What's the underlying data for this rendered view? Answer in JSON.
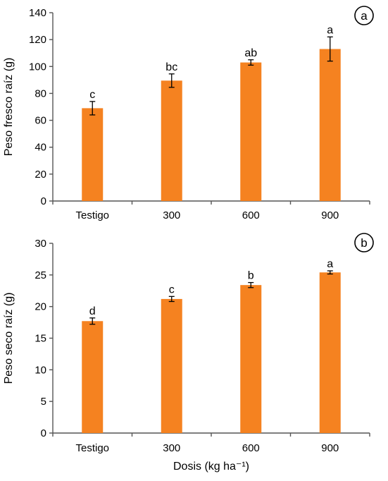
{
  "chart_data": [
    {
      "type": "bar",
      "panel_label": "a",
      "ylabel": "Peso fresco raíz  (g)",
      "xlabel": "",
      "categories": [
        "Testigo",
        "300",
        "600",
        "900"
      ],
      "values": [
        69,
        89.5,
        103,
        113
      ],
      "errors": [
        5,
        5,
        2,
        9
      ],
      "letters": [
        "c",
        "bc",
        "ab",
        "a"
      ],
      "ylim": [
        0,
        140
      ],
      "yticks": [
        0,
        20,
        40,
        60,
        80,
        100,
        120,
        140
      ],
      "bar_color": "#F58220",
      "grid": false
    },
    {
      "type": "bar",
      "panel_label": "b",
      "ylabel": "Peso seco raíz  (g)",
      "xlabel": "Dosis (kg ha⁻¹)",
      "categories": [
        "Testigo",
        "300",
        "600",
        "900"
      ],
      "values": [
        17.7,
        21.2,
        23.4,
        25.4
      ],
      "errors": [
        0.5,
        0.4,
        0.4,
        0.25
      ],
      "letters": [
        "d",
        "c",
        "b",
        "a"
      ],
      "ylim": [
        0,
        30
      ],
      "yticks": [
        0,
        5,
        10,
        15,
        20,
        25,
        30
      ],
      "bar_color": "#F58220",
      "grid": false
    }
  ]
}
